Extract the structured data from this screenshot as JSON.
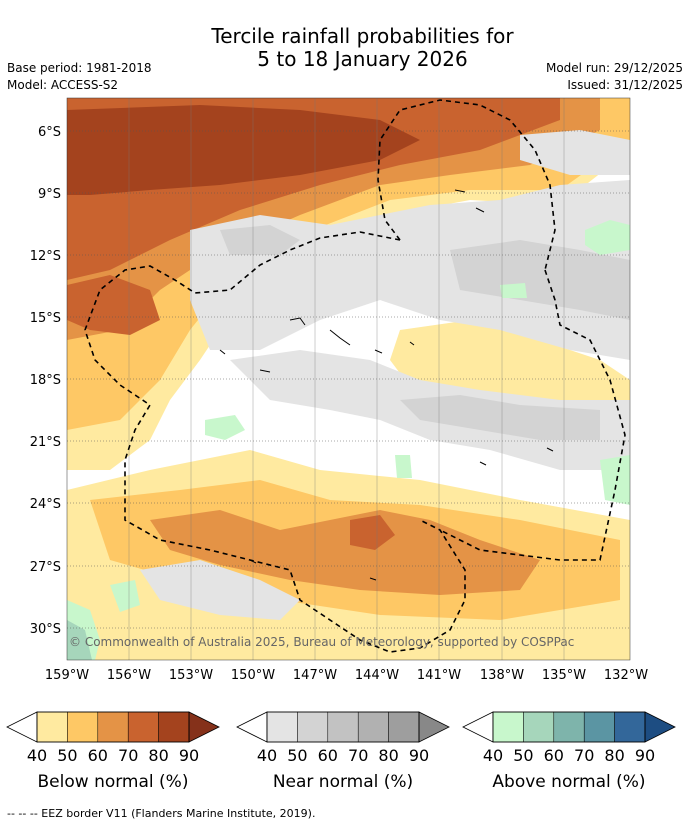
{
  "title": {
    "line1": "Tercile rainfall probabilities for",
    "line2": "5 to 18 January 2026"
  },
  "meta": {
    "base_period": "Base period: 1981-2018",
    "model": "Model: ACCESS-S2",
    "model_run": "Model run: 29/12/2025",
    "issued": "Issued: 31/12/2025"
  },
  "map": {
    "lat_labels": [
      "6°S",
      "9°S",
      "12°S",
      "15°S",
      "18°S",
      "21°S",
      "24°S",
      "27°S",
      "30°S"
    ],
    "lon_labels": [
      "159°W",
      "156°W",
      "153°W",
      "150°W",
      "147°W",
      "144°W",
      "141°W",
      "138°W",
      "135°W",
      "132°W"
    ],
    "credit": "© Commonwealth of Australia 2025, Bureau of Meteorology, supported by COSPPac"
  },
  "legend": {
    "tick_labels": [
      "40",
      "50",
      "60",
      "70",
      "80",
      "90"
    ],
    "below": {
      "label": "Below normal (%)",
      "colors": [
        "#ffeaa0",
        "#fec865",
        "#e49346",
        "#c9632f",
        "#a4431e",
        "#85311a"
      ]
    },
    "near": {
      "label": "Near normal (%)",
      "colors": [
        "#e4e4e4",
        "#d3d3d3",
        "#c2c2c2",
        "#b1b1b1",
        "#9e9e9e",
        "#888888"
      ]
    },
    "above": {
      "label": "Above normal (%)",
      "colors": [
        "#c8f7cc",
        "#a6d6bb",
        "#7eb4ab",
        "#5b95a3",
        "#33679a",
        "#1d4d82"
      ]
    }
  },
  "footer": {
    "text": "-- -- -- EEZ border V11 (Flanders Marine Institute, 2019)."
  }
}
